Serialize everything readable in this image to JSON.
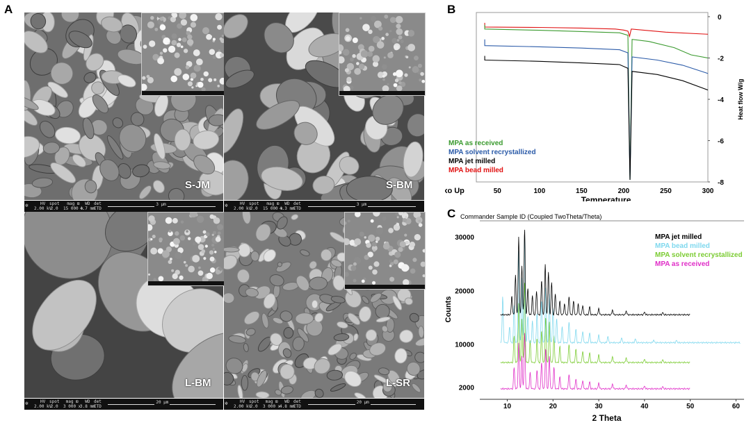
{
  "panels": {
    "a": "A",
    "b": "B",
    "c": "C"
  },
  "sem": {
    "images": [
      {
        "label": "S-JM",
        "hv": "2.00 kV",
        "spot": "2.0",
        "mag": "15 000 x",
        "wd": "4.7 mm",
        "det": "ETD",
        "scale": "3 µm"
      },
      {
        "label": "S-BM",
        "hv": "2.00 kV",
        "spot": "2.0",
        "mag": "15 000 x",
        "wd": "4.3 mm",
        "det": "ETD",
        "scale": "3 µm"
      },
      {
        "label": "L-BM",
        "hv": "2.00 kV",
        "spot": "2.0",
        "mag": "3 000 x",
        "wd": "3.8 mm",
        "det": "ETD",
        "scale": "20 µm"
      },
      {
        "label": "L-SR",
        "hv": "2.00 kV",
        "spot": "2.0",
        "mag": "3 000 x",
        "wd": "4.8 mm",
        "det": "ETD",
        "scale": "20 µm"
      }
    ],
    "headers": {
      "hv": "HV",
      "spot": "spot",
      "mag": "mag ⊞",
      "wd": "WD",
      "det": "det"
    }
  },
  "chart_data": [
    {
      "type": "line",
      "panel": "B",
      "xlabel": "Temperature",
      "ylabel": "Heat flow W/g",
      "corner_label": "Exo Up",
      "xlim": [
        25,
        300
      ],
      "ylim": [
        -8,
        0
      ],
      "x_ticks": [
        50,
        100,
        150,
        200,
        250,
        300
      ],
      "y_ticks": [
        0,
        -2,
        -4,
        -6,
        -8
      ],
      "legend": [
        {
          "text": "MPA  as received",
          "color": "#3a9a2e"
        },
        {
          "text": "MPA solvent recrystallized",
          "color": "#2a5aa8"
        },
        {
          "text": "MPA jet milled",
          "color": "#000000"
        },
        {
          "text": "MPA bead milled",
          "color": "#e01010"
        }
      ],
      "series": [
        {
          "color": "#e01010",
          "points": [
            [
              35,
              -0.3
            ],
            [
              35,
              -0.5
            ],
            [
              100,
              -0.52
            ],
            [
              150,
              -0.55
            ],
            [
              190,
              -0.6
            ],
            [
              200,
              -0.65
            ],
            [
              205,
              -0.7
            ],
            [
              207,
              -0.95
            ],
            [
              209,
              -0.6
            ],
            [
              250,
              -0.75
            ],
            [
              300,
              -0.85
            ]
          ]
        },
        {
          "color": "#3a9a2e",
          "points": [
            [
              35,
              -0.4
            ],
            [
              35,
              -0.6
            ],
            [
              100,
              -0.66
            ],
            [
              150,
              -0.72
            ],
            [
              195,
              -0.78
            ],
            [
              205,
              -0.9
            ],
            [
              207.5,
              -7.9
            ],
            [
              210,
              -1.1
            ],
            [
              230,
              -1.2
            ],
            [
              260,
              -1.5
            ],
            [
              280,
              -1.85
            ],
            [
              300,
              -2.0
            ]
          ]
        },
        {
          "color": "#2a5aa8",
          "points": [
            [
              35,
              -1.1
            ],
            [
              35,
              -1.4
            ],
            [
              100,
              -1.46
            ],
            [
              150,
              -1.52
            ],
            [
              195,
              -1.6
            ],
            [
              205,
              -1.75
            ],
            [
              207.5,
              -7.9
            ],
            [
              210,
              -1.95
            ],
            [
              240,
              -2.1
            ],
            [
              270,
              -2.35
            ],
            [
              300,
              -2.75
            ]
          ]
        },
        {
          "color": "#000000",
          "points": [
            [
              35,
              -1.9
            ],
            [
              35,
              -2.1
            ],
            [
              100,
              -2.16
            ],
            [
              150,
              -2.24
            ],
            [
              195,
              -2.32
            ],
            [
              205,
              -2.5
            ],
            [
              207.5,
              -7.9
            ],
            [
              210,
              -2.65
            ],
            [
              240,
              -2.8
            ],
            [
              270,
              -3.1
            ],
            [
              300,
              -3.55
            ]
          ]
        }
      ]
    },
    {
      "type": "line",
      "panel": "C",
      "title": "Commander Sample ID (Coupled TwoTheta/Theta)",
      "xlabel": "2 Theta",
      "ylabel": "Counts",
      "xlim": [
        4,
        61
      ],
      "ylim": [
        0,
        33000
      ],
      "x_ticks": [
        10,
        20,
        30,
        40,
        50,
        60
      ],
      "y_ticks": [
        2000,
        10000,
        20000,
        30000
      ],
      "legend": [
        {
          "text": "MPA  jet milled",
          "color": "#000000"
        },
        {
          "text": "MPA bead milled",
          "color": "#7fd8ee"
        },
        {
          "text": "MPA solvent recrystallized",
          "color": "#7ccc33"
        },
        {
          "text": "MPA as received",
          "color": "#e02ec8"
        }
      ],
      "series": [
        {
          "color": "#000000",
          "baseline": 15500,
          "xmax": 50,
          "peaks": [
            [
              11.0,
              3500
            ],
            [
              11.8,
              7500
            ],
            [
              12.5,
              14500
            ],
            [
              13.2,
              9000
            ],
            [
              13.8,
              16000
            ],
            [
              14.5,
              5000
            ],
            [
              15.5,
              3500
            ],
            [
              16.4,
              4500
            ],
            [
              17.5,
              6500
            ],
            [
              18.3,
              9500
            ],
            [
              19.0,
              8000
            ],
            [
              19.7,
              6000
            ],
            [
              20.5,
              4000
            ],
            [
              21.5,
              2500
            ],
            [
              22.5,
              2000
            ],
            [
              23.5,
              3500
            ],
            [
              24.5,
              2500
            ],
            [
              25.5,
              2000
            ],
            [
              26.5,
              1800
            ],
            [
              28,
              1500
            ],
            [
              30,
              1200
            ],
            [
              33,
              900
            ],
            [
              36,
              700
            ],
            [
              40,
              500
            ],
            [
              44,
              400
            ]
          ]
        },
        {
          "color": "#7fd8ee",
          "baseline": 10300,
          "xmax": 61,
          "peaks": [
            [
              7.5,
              1500
            ],
            [
              9.0,
              8500
            ],
            [
              10.5,
              3000
            ],
            [
              11.5,
              7000
            ],
            [
              12.5,
              17000
            ],
            [
              13.2,
              12000
            ],
            [
              13.8,
              20500
            ],
            [
              14.5,
              5000
            ],
            [
              15.5,
              4000
            ],
            [
              16.5,
              5500
            ],
            [
              17.5,
              8000
            ],
            [
              18.4,
              10500
            ],
            [
              19.2,
              9000
            ],
            [
              20.0,
              6500
            ],
            [
              20.8,
              4500
            ],
            [
              22,
              3000
            ],
            [
              23.5,
              4000
            ],
            [
              25,
              2500
            ],
            [
              26.5,
              2200
            ],
            [
              28,
              1800
            ],
            [
              30,
              1500
            ],
            [
              32,
              1200
            ],
            [
              35,
              900
            ],
            [
              38,
              700
            ],
            [
              42,
              500
            ],
            [
              47,
              400
            ]
          ]
        },
        {
          "color": "#7ccc33",
          "baseline": 6600,
          "xmax": 50,
          "peaks": [
            [
              11.5,
              5000
            ],
            [
              12.5,
              11000
            ],
            [
              13.2,
              8000
            ],
            [
              13.8,
              15000
            ],
            [
              15.0,
              4000
            ],
            [
              16.5,
              4500
            ],
            [
              17.5,
              6000
            ],
            [
              18.4,
              8500
            ],
            [
              19.2,
              7500
            ],
            [
              20.2,
              5000
            ],
            [
              21.5,
              3000
            ],
            [
              23.5,
              3500
            ],
            [
              25,
              2500
            ],
            [
              26.5,
              2200
            ],
            [
              28,
              1800
            ],
            [
              30,
              1500
            ],
            [
              33,
              1100
            ],
            [
              36,
              900
            ],
            [
              40,
              600
            ],
            [
              44,
              500
            ]
          ]
        },
        {
          "color": "#e02ec8",
          "baseline": 1700,
          "xmax": 50,
          "peaks": [
            [
              11.5,
              4000
            ],
            [
              12.5,
              8500
            ],
            [
              13.2,
              6000
            ],
            [
              13.8,
              10500
            ],
            [
              15.0,
              3000
            ],
            [
              16.5,
              3500
            ],
            [
              17.5,
              5000
            ],
            [
              18.4,
              7500
            ],
            [
              19.2,
              6000
            ],
            [
              20.2,
              4000
            ],
            [
              21.5,
              2200
            ],
            [
              23.5,
              2800
            ],
            [
              25,
              1800
            ],
            [
              26.5,
              1600
            ],
            [
              28,
              1300
            ],
            [
              30,
              1100
            ],
            [
              33,
              900
            ],
            [
              36,
              700
            ],
            [
              40,
              500
            ],
            [
              44,
              400
            ]
          ]
        }
      ]
    }
  ]
}
